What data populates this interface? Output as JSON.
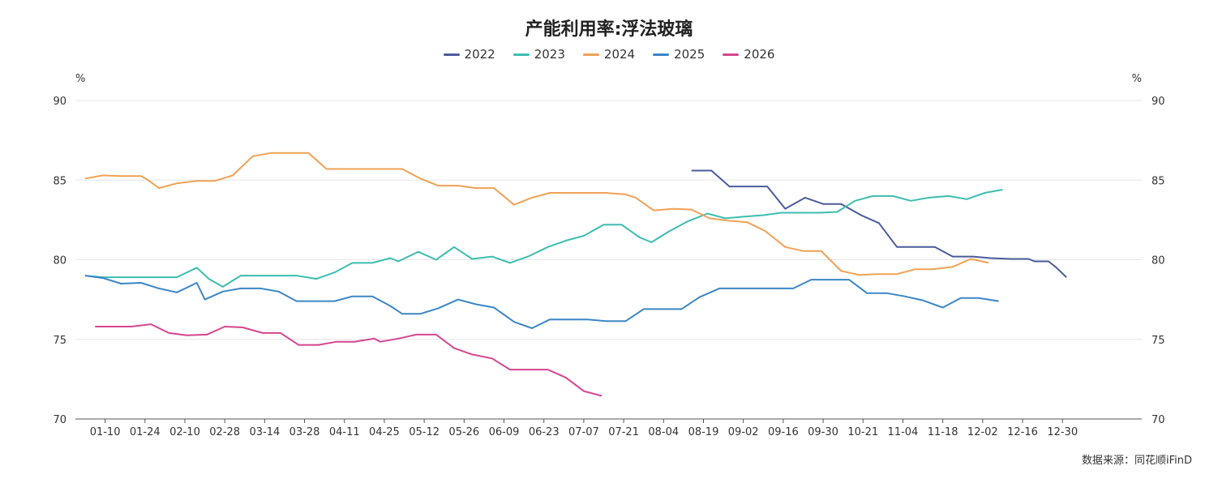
{
  "chart_data": {
    "type": "line",
    "title": "产能利用率:浮法玻璃",
    "ylabel_left": "%",
    "ylabel_right": "%",
    "ylim": [
      70,
      90
    ],
    "yticks": [
      70,
      75,
      80,
      85,
      90
    ],
    "x_range": [
      1,
      53
    ],
    "xticks": [
      {
        "label": "01-10",
        "x": 2
      },
      {
        "label": "01-24",
        "x": 4
      },
      {
        "label": "02-10",
        "x": 6
      },
      {
        "label": "02-28",
        "x": 8
      },
      {
        "label": "03-14",
        "x": 10
      },
      {
        "label": "03-28",
        "x": 12
      },
      {
        "label": "04-11",
        "x": 14
      },
      {
        "label": "04-25",
        "x": 16
      },
      {
        "label": "05-12",
        "x": 18
      },
      {
        "label": "05-26",
        "x": 20
      },
      {
        "label": "06-09",
        "x": 22
      },
      {
        "label": "06-23",
        "x": 24
      },
      {
        "label": "07-07",
        "x": 26
      },
      {
        "label": "07-21",
        "x": 28
      },
      {
        "label": "08-04",
        "x": 30
      },
      {
        "label": "08-19",
        "x": 32
      },
      {
        "label": "09-02",
        "x": 34
      },
      {
        "label": "09-16",
        "x": 36
      },
      {
        "label": "09-30",
        "x": 38
      },
      {
        "label": "10-21",
        "x": 40
      },
      {
        "label": "11-04",
        "x": 42
      },
      {
        "label": "11-18",
        "x": 44
      },
      {
        "label": "12-02",
        "x": 46
      },
      {
        "label": "12-16",
        "x": 48
      },
      {
        "label": "12-30",
        "x": 50
      }
    ],
    "grid": true,
    "legend_position": "top",
    "series": [
      {
        "name": "2022",
        "color": "#4a5b9b",
        "points": [
          [
            31.4,
            85.6
          ],
          [
            32.4,
            85.6
          ],
          [
            33.3,
            84.6
          ],
          [
            34.3,
            84.6
          ],
          [
            35.2,
            84.6
          ],
          [
            36.1,
            83.2
          ],
          [
            37.1,
            83.9
          ],
          [
            38.0,
            83.5
          ],
          [
            38.9,
            83.5
          ],
          [
            39.9,
            82.8
          ],
          [
            40.8,
            82.3
          ],
          [
            41.7,
            80.8
          ],
          [
            42.7,
            80.8
          ],
          [
            43.6,
            80.8
          ],
          [
            44.5,
            80.2
          ],
          [
            45.5,
            80.2
          ],
          [
            46.4,
            80.1
          ],
          [
            47.4,
            80.05
          ],
          [
            48.3,
            80.05
          ],
          [
            48.6,
            79.9
          ],
          [
            49.3,
            79.9
          ],
          [
            49.7,
            79.5
          ],
          [
            50.2,
            78.9
          ]
        ]
      },
      {
        "name": "2023",
        "color": "#3dbdb0",
        "points": [
          [
            1.0,
            79.0
          ],
          [
            1.9,
            78.9
          ],
          [
            2.8,
            78.9
          ],
          [
            3.8,
            78.9
          ],
          [
            4.7,
            78.9
          ],
          [
            5.6,
            78.9
          ],
          [
            6.6,
            79.5
          ],
          [
            7.2,
            78.8
          ],
          [
            7.9,
            78.3
          ],
          [
            8.8,
            79.0
          ],
          [
            9.8,
            79.0
          ],
          [
            10.7,
            79.0
          ],
          [
            11.6,
            79.0
          ],
          [
            12.6,
            78.8
          ],
          [
            13.5,
            79.2
          ],
          [
            14.4,
            79.8
          ],
          [
            15.4,
            79.8
          ],
          [
            16.3,
            80.1
          ],
          [
            16.7,
            79.9
          ],
          [
            17.7,
            80.5
          ],
          [
            18.6,
            80.0
          ],
          [
            19.5,
            80.8
          ],
          [
            20.4,
            80.05
          ],
          [
            21.4,
            80.2
          ],
          [
            22.3,
            79.8
          ],
          [
            23.2,
            80.2
          ],
          [
            24.2,
            80.8
          ],
          [
            25.1,
            81.2
          ],
          [
            26.0,
            81.5
          ],
          [
            27.0,
            82.2
          ],
          [
            27.9,
            82.2
          ],
          [
            28.8,
            81.4
          ],
          [
            29.4,
            81.1
          ],
          [
            30.3,
            81.8
          ],
          [
            31.2,
            82.4
          ],
          [
            32.2,
            82.9
          ],
          [
            33.1,
            82.6
          ],
          [
            34.0,
            82.7
          ],
          [
            35.0,
            82.8
          ],
          [
            35.9,
            82.95
          ],
          [
            36.8,
            82.95
          ],
          [
            37.8,
            82.95
          ],
          [
            38.7,
            83.0
          ],
          [
            39.6,
            83.7
          ],
          [
            40.5,
            84.0
          ],
          [
            41.5,
            84.0
          ],
          [
            42.4,
            83.7
          ],
          [
            43.3,
            83.9
          ],
          [
            44.3,
            84.0
          ],
          [
            45.2,
            83.8
          ],
          [
            46.1,
            84.2
          ],
          [
            47.0,
            84.4
          ]
        ]
      },
      {
        "name": "2024",
        "color": "#f0a155",
        "points": [
          [
            1.0,
            85.1
          ],
          [
            1.9,
            85.3
          ],
          [
            2.8,
            85.25
          ],
          [
            3.8,
            85.25
          ],
          [
            4.1,
            85.05
          ],
          [
            4.7,
            84.5
          ],
          [
            5.6,
            84.8
          ],
          [
            6.6,
            84.95
          ],
          [
            7.5,
            84.95
          ],
          [
            8.4,
            85.3
          ],
          [
            9.4,
            86.5
          ],
          [
            10.3,
            86.7
          ],
          [
            11.3,
            86.7
          ],
          [
            12.2,
            86.7
          ],
          [
            13.1,
            85.7
          ],
          [
            14.1,
            85.7
          ],
          [
            15.0,
            85.7
          ],
          [
            15.9,
            85.7
          ],
          [
            16.9,
            85.7
          ],
          [
            17.8,
            85.1
          ],
          [
            18.7,
            84.65
          ],
          [
            19.7,
            84.65
          ],
          [
            20.6,
            84.5
          ],
          [
            21.5,
            84.5
          ],
          [
            22.5,
            83.45
          ],
          [
            23.4,
            83.9
          ],
          [
            24.3,
            84.2
          ],
          [
            25.3,
            84.2
          ],
          [
            26.2,
            84.2
          ],
          [
            27.1,
            84.2
          ],
          [
            28.1,
            84.1
          ],
          [
            28.6,
            83.9
          ],
          [
            29.5,
            83.1
          ],
          [
            30.5,
            83.2
          ],
          [
            31.4,
            83.15
          ],
          [
            32.3,
            82.6
          ],
          [
            33.3,
            82.45
          ],
          [
            34.2,
            82.35
          ],
          [
            35.1,
            81.8
          ],
          [
            36.1,
            80.8
          ],
          [
            37.0,
            80.55
          ],
          [
            37.9,
            80.55
          ],
          [
            38.9,
            79.3
          ],
          [
            39.8,
            79.05
          ],
          [
            40.7,
            79.1
          ],
          [
            41.7,
            79.1
          ],
          [
            42.6,
            79.4
          ],
          [
            43.5,
            79.4
          ],
          [
            44.5,
            79.55
          ],
          [
            45.4,
            80.05
          ],
          [
            46.3,
            79.8
          ]
        ]
      },
      {
        "name": "2025",
        "color": "#3b86c6",
        "points": [
          [
            1.0,
            79.0
          ],
          [
            1.9,
            78.85
          ],
          [
            2.8,
            78.5
          ],
          [
            3.8,
            78.55
          ],
          [
            4.7,
            78.2
          ],
          [
            5.6,
            77.95
          ],
          [
            6.6,
            78.55
          ],
          [
            7.0,
            77.5
          ],
          [
            7.9,
            78.0
          ],
          [
            8.8,
            78.2
          ],
          [
            9.8,
            78.2
          ],
          [
            10.7,
            78.0
          ],
          [
            11.6,
            77.4
          ],
          [
            12.6,
            77.4
          ],
          [
            13.5,
            77.4
          ],
          [
            14.4,
            77.7
          ],
          [
            15.4,
            77.7
          ],
          [
            16.3,
            77.1
          ],
          [
            16.9,
            76.6
          ],
          [
            17.8,
            76.6
          ],
          [
            18.7,
            76.95
          ],
          [
            19.7,
            77.5
          ],
          [
            20.6,
            77.2
          ],
          [
            21.5,
            77.0
          ],
          [
            22.5,
            76.1
          ],
          [
            23.4,
            75.7
          ],
          [
            24.3,
            76.25
          ],
          [
            25.3,
            76.25
          ],
          [
            26.2,
            76.25
          ],
          [
            27.1,
            76.15
          ],
          [
            28.1,
            76.15
          ],
          [
            29.0,
            76.9
          ],
          [
            30.0,
            76.9
          ],
          [
            30.9,
            76.9
          ],
          [
            31.8,
            77.65
          ],
          [
            32.8,
            78.2
          ],
          [
            33.7,
            78.2
          ],
          [
            34.6,
            78.2
          ],
          [
            35.6,
            78.2
          ],
          [
            36.5,
            78.2
          ],
          [
            37.4,
            78.75
          ],
          [
            38.4,
            78.75
          ],
          [
            39.3,
            78.75
          ],
          [
            40.2,
            77.9
          ],
          [
            41.2,
            77.9
          ],
          [
            42.1,
            77.7
          ],
          [
            43.0,
            77.45
          ],
          [
            44.0,
            77.0
          ],
          [
            44.9,
            77.6
          ],
          [
            45.8,
            77.6
          ],
          [
            46.8,
            77.4
          ]
        ]
      },
      {
        "name": "2026",
        "color": "#d6468f",
        "points": [
          [
            1.5,
            75.8
          ],
          [
            2.4,
            75.8
          ],
          [
            3.3,
            75.8
          ],
          [
            4.3,
            75.95
          ],
          [
            5.2,
            75.4
          ],
          [
            6.1,
            75.25
          ],
          [
            7.1,
            75.3
          ],
          [
            8.0,
            75.8
          ],
          [
            8.9,
            75.75
          ],
          [
            9.9,
            75.4
          ],
          [
            10.8,
            75.4
          ],
          [
            11.7,
            74.65
          ],
          [
            12.7,
            74.65
          ],
          [
            13.6,
            74.85
          ],
          [
            14.5,
            74.85
          ],
          [
            15.5,
            75.05
          ],
          [
            15.8,
            74.85
          ],
          [
            16.7,
            75.05
          ],
          [
            17.6,
            75.3
          ],
          [
            18.6,
            75.3
          ],
          [
            19.5,
            74.45
          ],
          [
            20.4,
            74.05
          ],
          [
            21.4,
            73.8
          ],
          [
            22.3,
            73.1
          ],
          [
            23.2,
            73.1
          ],
          [
            24.2,
            73.1
          ],
          [
            25.1,
            72.6
          ],
          [
            26.0,
            71.75
          ],
          [
            26.9,
            71.45
          ]
        ]
      }
    ],
    "source": "数据来源：同花顺iFinD"
  }
}
